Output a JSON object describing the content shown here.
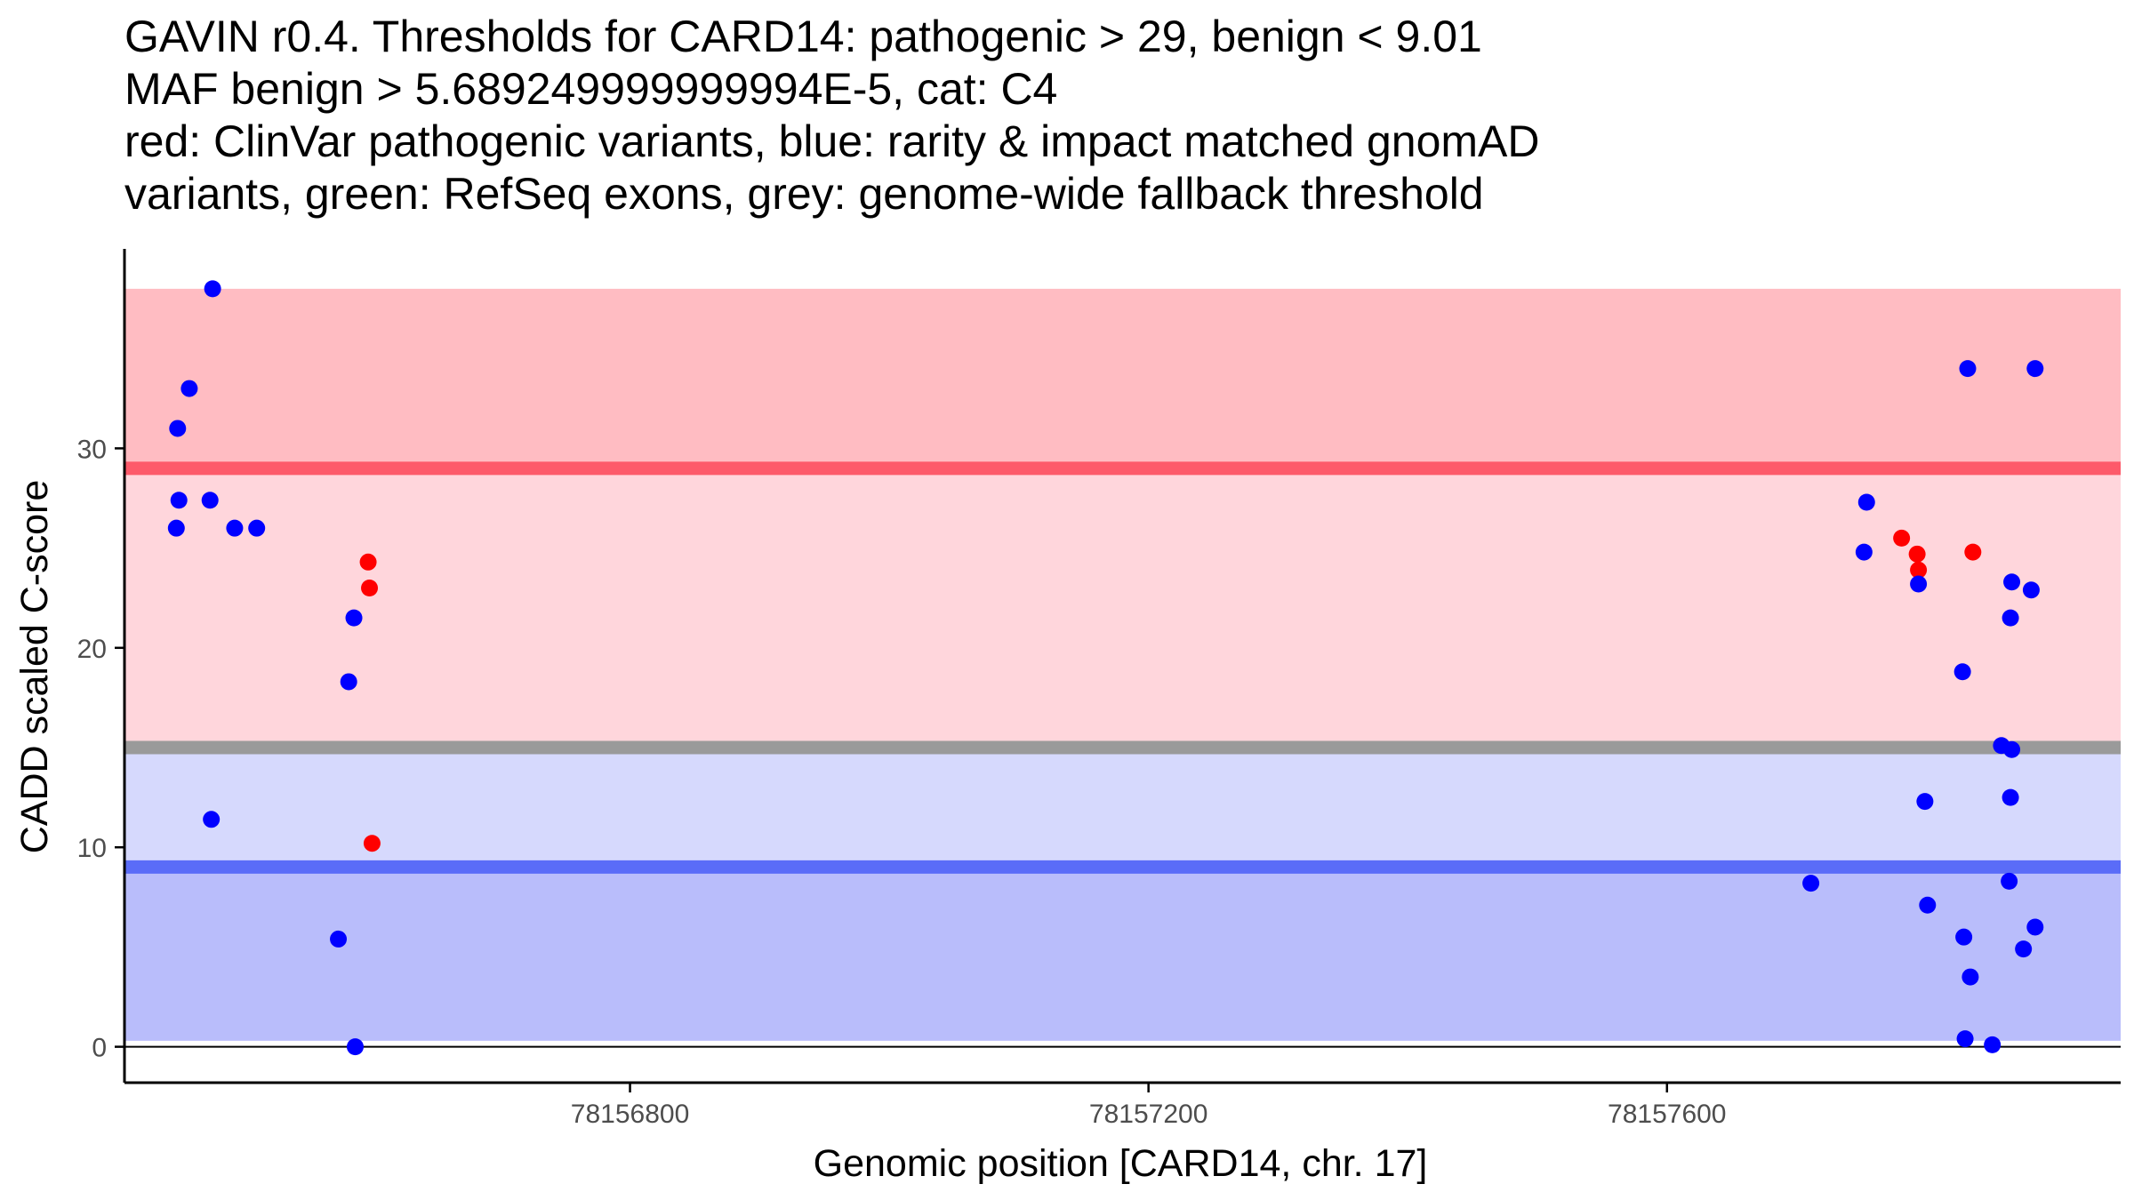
{
  "chart_data": {
    "type": "scatter",
    "title_lines": [
      "GAVIN r0.4. Thresholds for CARD14: pathogenic > 29, benign < 9.01",
      "MAF benign > 5.689249999999994E-5, cat: C4",
      "red: ClinVar pathogenic variants, blue: rarity & impact matched gnomAD",
      "variants, green: RefSeq exons, grey: genome-wide fallback threshold"
    ],
    "xlabel": "Genomic position [CARD14, chr. 17]",
    "ylabel": "CADD scaled C-score",
    "xlim": [
      78156410,
      78157950
    ],
    "ylim": [
      -1.8,
      40
    ],
    "x_ticks": [
      78156800,
      78157200,
      78157600
    ],
    "x_tick_labels": [
      "78156800",
      "78157200",
      "78157600"
    ],
    "y_ticks": [
      0,
      10,
      20,
      30
    ],
    "y_tick_labels": [
      "0",
      "10",
      "20",
      "30"
    ],
    "regions": {
      "x_start": 78156410,
      "x_end": 78157950,
      "pathogenic_band": [
        29,
        38
      ],
      "intermediate_band": [
        15,
        29
      ],
      "benign_high_band": [
        9.01,
        15
      ],
      "benign_low_band": [
        0.3,
        9.01
      ]
    },
    "thresholds": {
      "pathogenic": 29,
      "genome_wide_fallback": 15,
      "benign": 9.01
    },
    "colors": {
      "pathogenic_band": "#ffbcc2",
      "intermediate_band": "#ffd6dc",
      "benign_high_band": "#d6d9fd",
      "benign_low_band": "#b9bdfb",
      "pathogenic_line": "#fd5a6a",
      "fallback_line": "#9a9a9a",
      "benign_line": "#5a6cf8",
      "clinvar": "#ff0000",
      "gnomad": "#0000ff",
      "axis": "#000000",
      "tick_label": "#4d4d4d"
    },
    "series": [
      {
        "name": "ClinVar pathogenic variants",
        "color": "red",
        "points": [
          [
            78156598,
            24.3
          ],
          [
            78156599,
            23.0
          ],
          [
            78156601,
            10.2
          ],
          [
            78157781,
            25.5
          ],
          [
            78157793,
            24.7
          ],
          [
            78157794,
            23.9
          ],
          [
            78157836,
            24.8
          ]
        ]
      },
      {
        "name": "rarity & impact matched gnomAD variants",
        "color": "blue",
        "points": [
          [
            78156478,
            38.0
          ],
          [
            78156460,
            33.0
          ],
          [
            78156451,
            31.0
          ],
          [
            78156452,
            27.4
          ],
          [
            78156476,
            27.4
          ],
          [
            78156450,
            26.0
          ],
          [
            78156495,
            26.0
          ],
          [
            78156512,
            26.0
          ],
          [
            78156587,
            21.5
          ],
          [
            78156583,
            18.3
          ],
          [
            78156477,
            11.4
          ],
          [
            78156575,
            5.4
          ],
          [
            78156588,
            0.0
          ],
          [
            78157754,
            27.3
          ],
          [
            78157752,
            24.8
          ],
          [
            78157794,
            23.2
          ],
          [
            78157832,
            34.0
          ],
          [
            78157884,
            34.0
          ],
          [
            78157866,
            23.3
          ],
          [
            78157881,
            22.9
          ],
          [
            78157865,
            21.5
          ],
          [
            78157828,
            18.8
          ],
          [
            78157858,
            15.1
          ],
          [
            78157866,
            14.9
          ],
          [
            78157865,
            12.5
          ],
          [
            78157799,
            12.3
          ],
          [
            78157864,
            8.3
          ],
          [
            78157711,
            8.2
          ],
          [
            78157801,
            7.1
          ],
          [
            78157884,
            6.0
          ],
          [
            78157875,
            4.9
          ],
          [
            78157829,
            5.5
          ],
          [
            78157834,
            3.5
          ],
          [
            78157830,
            0.4
          ],
          [
            78157851,
            0.1
          ]
        ]
      }
    ]
  }
}
